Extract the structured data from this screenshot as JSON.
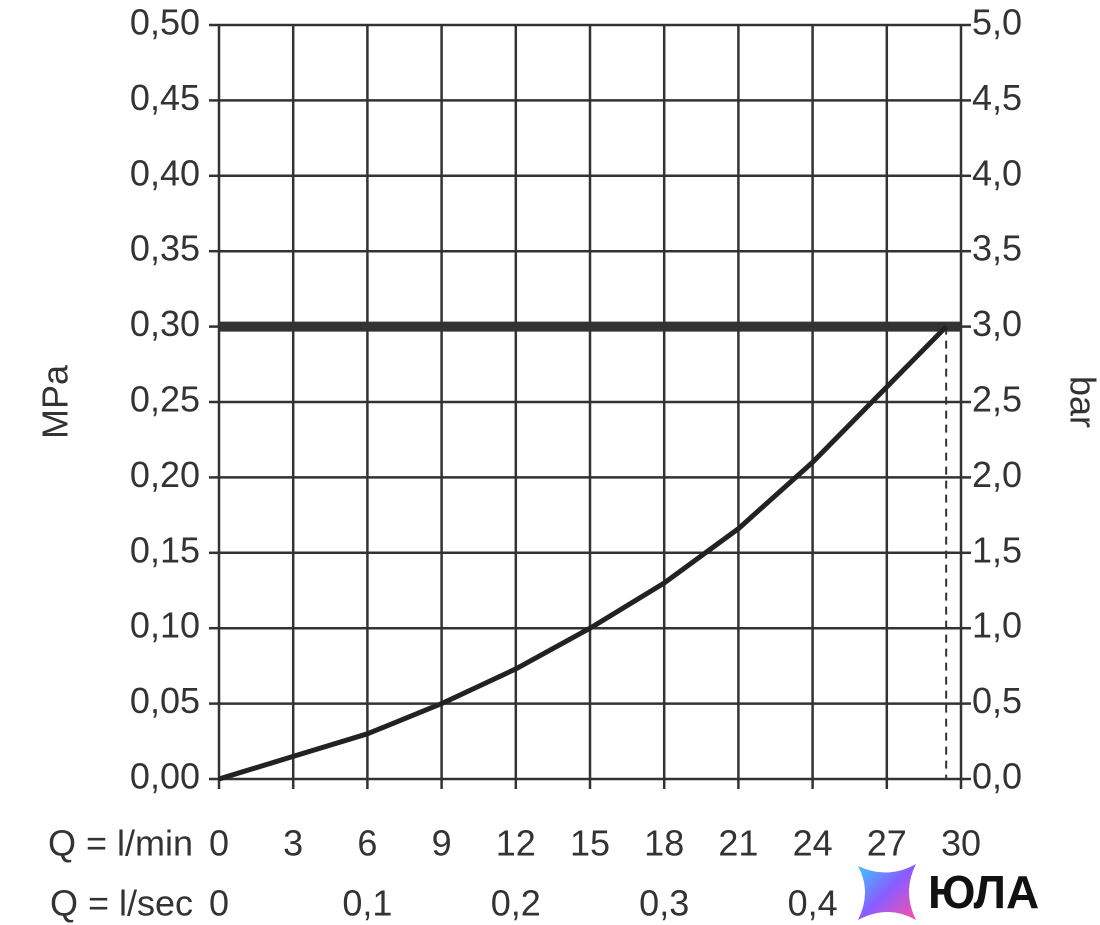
{
  "chart_data": {
    "type": "line",
    "x": [
      0,
      3,
      6,
      9,
      12,
      15,
      18,
      21,
      24,
      27,
      29.4
    ],
    "values": [
      0,
      0.015,
      0.03,
      0.05,
      0.073,
      0.1,
      0.13,
      0.166,
      0.21,
      0.26,
      0.3
    ],
    "color": "#222222",
    "xlim": [
      0,
      30
    ],
    "xticks": [
      0,
      3,
      6,
      9,
      12,
      15,
      18,
      21,
      24,
      27,
      30
    ],
    "x2lim": [
      0,
      0.5
    ],
    "x2ticks": [
      0,
      {
        "value": 0.1,
        "label": "0,1"
      },
      {
        "value": 0.2,
        "label": "0,2"
      },
      {
        "value": 0.3,
        "label": "0,3"
      },
      {
        "value": 0.4,
        "label": "0,4"
      }
    ],
    "ylim": [
      0,
      0.5
    ],
    "yticks": [
      {
        "value": 0,
        "label": "0,00"
      },
      {
        "value": 0.05,
        "label": "0,05"
      },
      {
        "value": 0.1,
        "label": "0,10"
      },
      {
        "value": 0.15,
        "label": "0,15"
      },
      {
        "value": 0.2,
        "label": "0,20"
      },
      {
        "value": 0.25,
        "label": "0,25"
      },
      {
        "value": 0.3,
        "label": "0,30"
      },
      {
        "value": 0.35,
        "label": "0,35"
      },
      {
        "value": 0.4,
        "label": "0,40"
      },
      {
        "value": 0.45,
        "label": "0,45"
      },
      {
        "value": 0.5,
        "label": "0,50"
      }
    ],
    "y2lim": [
      0,
      5
    ],
    "y2ticks": [
      {
        "value": 0,
        "label": "0,0"
      },
      {
        "value": 0.5,
        "label": "0,5"
      },
      {
        "value": 1,
        "label": "1,0"
      },
      {
        "value": 1.5,
        "label": "1,5"
      },
      {
        "value": 2,
        "label": "2,0"
      },
      {
        "value": 2.5,
        "label": "2,5"
      },
      {
        "value": 3,
        "label": "3,0"
      },
      {
        "value": 3.5,
        "label": "3,5"
      },
      {
        "value": 4,
        "label": "4,0"
      },
      {
        "value": 4.5,
        "label": "4,5"
      },
      {
        "value": 5,
        "label": "5,0"
      }
    ],
    "ylabel": "MPa",
    "y2label": "bar",
    "xlabel": "Q = l/min",
    "x2label": "Q = l/sec",
    "hline": 0.3,
    "vline": 29.4,
    "grid": true
  },
  "watermark": "ЮЛА"
}
